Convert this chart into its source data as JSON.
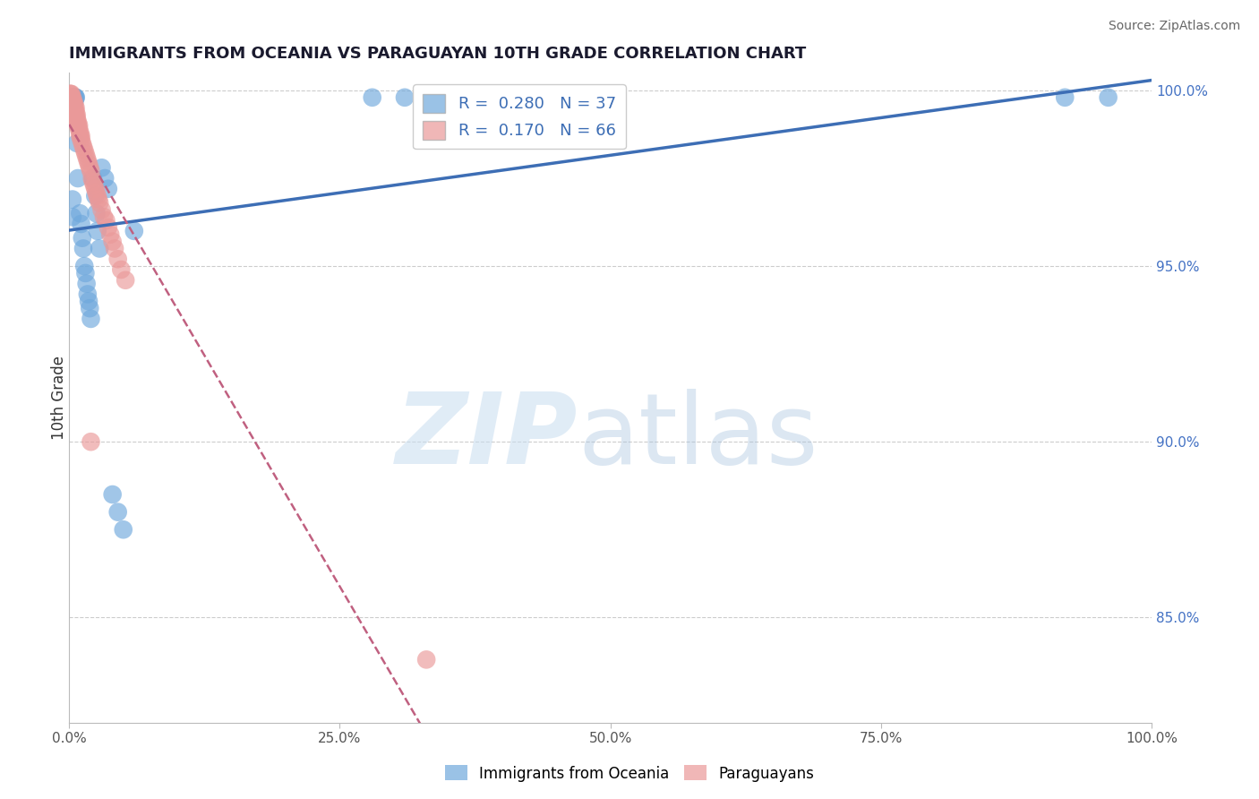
{
  "title": "IMMIGRANTS FROM OCEANIA VS PARAGUAYAN 10TH GRADE CORRELATION CHART",
  "source": "Source: ZipAtlas.com",
  "ylabel": "10th Grade",
  "R_blue": 0.28,
  "N_blue": 37,
  "R_pink": 0.17,
  "N_pink": 66,
  "blue_color": "#6fa8dc",
  "pink_color": "#ea9999",
  "blue_line_color": "#3d6eb5",
  "pink_line_color": "#c06080",
  "xlim": [
    0.0,
    1.0
  ],
  "ylim": [
    0.82,
    1.005
  ],
  "right_yticks": [
    0.85,
    0.9,
    0.95,
    1.0
  ],
  "right_yticklabels": [
    "85.0%",
    "90.0%",
    "95.0%",
    "100.0%"
  ],
  "blue_scatter_x": [
    0.003,
    0.003,
    0.004,
    0.005,
    0.005,
    0.005,
    0.006,
    0.006,
    0.007,
    0.008,
    0.01,
    0.011,
    0.012,
    0.013,
    0.014,
    0.015,
    0.016,
    0.017,
    0.018,
    0.019,
    0.02,
    0.022,
    0.024,
    0.025,
    0.026,
    0.028,
    0.03,
    0.033,
    0.036,
    0.04,
    0.045,
    0.05,
    0.06,
    0.28,
    0.31,
    0.92,
    0.96
  ],
  "blue_scatter_y": [
    0.969,
    0.964,
    0.998,
    0.998,
    0.998,
    0.997,
    0.998,
    0.998,
    0.985,
    0.975,
    0.965,
    0.962,
    0.958,
    0.955,
    0.95,
    0.948,
    0.945,
    0.942,
    0.94,
    0.938,
    0.935,
    0.975,
    0.97,
    0.965,
    0.96,
    0.955,
    0.978,
    0.975,
    0.972,
    0.885,
    0.88,
    0.875,
    0.96,
    0.998,
    0.998,
    0.998,
    0.998
  ],
  "pink_scatter_x": [
    0.001,
    0.001,
    0.001,
    0.001,
    0.001,
    0.002,
    0.002,
    0.002,
    0.002,
    0.002,
    0.003,
    0.003,
    0.003,
    0.003,
    0.003,
    0.004,
    0.004,
    0.004,
    0.004,
    0.005,
    0.005,
    0.005,
    0.005,
    0.006,
    0.006,
    0.006,
    0.007,
    0.007,
    0.007,
    0.008,
    0.008,
    0.009,
    0.009,
    0.01,
    0.01,
    0.011,
    0.011,
    0.012,
    0.013,
    0.014,
    0.015,
    0.016,
    0.017,
    0.018,
    0.019,
    0.02,
    0.021,
    0.022,
    0.023,
    0.024,
    0.025,
    0.026,
    0.027,
    0.028,
    0.03,
    0.032,
    0.034,
    0.036,
    0.038,
    0.04,
    0.042,
    0.045,
    0.048,
    0.052,
    0.02,
    0.33
  ],
  "pink_scatter_y": [
    0.999,
    0.999,
    0.998,
    0.998,
    0.997,
    0.999,
    0.998,
    0.997,
    0.996,
    0.995,
    0.998,
    0.997,
    0.996,
    0.995,
    0.994,
    0.997,
    0.996,
    0.995,
    0.994,
    0.996,
    0.995,
    0.994,
    0.993,
    0.995,
    0.994,
    0.993,
    0.993,
    0.992,
    0.991,
    0.991,
    0.99,
    0.99,
    0.989,
    0.988,
    0.987,
    0.987,
    0.986,
    0.985,
    0.984,
    0.983,
    0.982,
    0.981,
    0.98,
    0.979,
    0.978,
    0.977,
    0.975,
    0.974,
    0.973,
    0.972,
    0.971,
    0.97,
    0.969,
    0.968,
    0.966,
    0.964,
    0.963,
    0.961,
    0.959,
    0.957,
    0.955,
    0.952,
    0.949,
    0.946,
    0.9,
    0.838
  ]
}
